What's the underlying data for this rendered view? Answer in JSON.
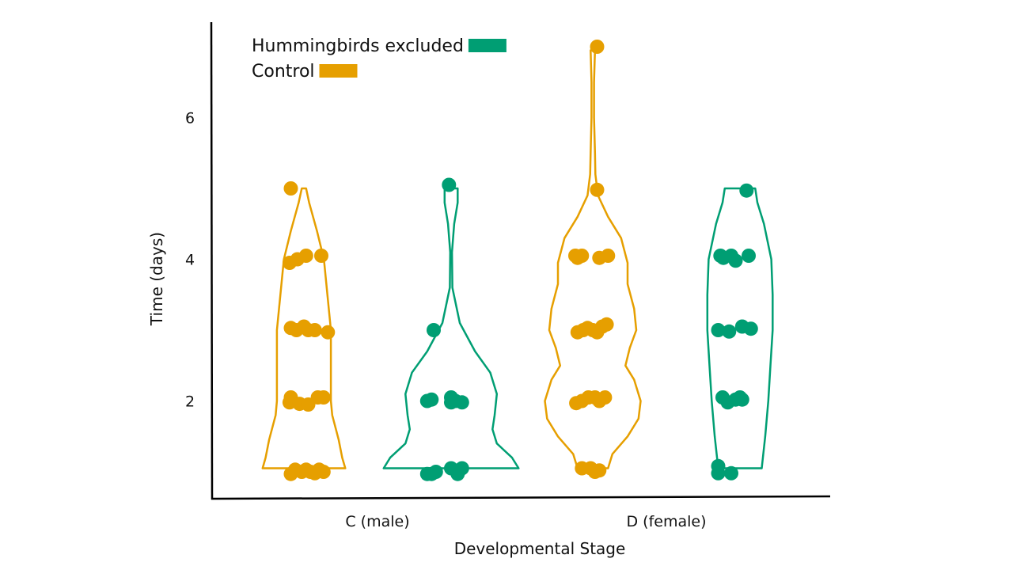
{
  "chart_data": {
    "type": "violin",
    "title": "",
    "xlabel": "Developmental Stage",
    "ylabel": "Time (days)",
    "ylim": [
      0.6,
      7.3
    ],
    "yticks": [
      2,
      4,
      6
    ],
    "grid": false,
    "legend_position": "top-left",
    "categories": [
      "C (male)",
      "D (female)"
    ],
    "series": [
      {
        "name": "Control",
        "color": "#E69F00",
        "groups": [
          {
            "category": "C (male)",
            "points": [
              {
                "x_jitter": -0.3,
                "y": 5.0
              },
              {
                "x_jitter": -0.33,
                "y": 3.95
              },
              {
                "x_jitter": -0.15,
                "y": 4.0
              },
              {
                "x_jitter": 0.05,
                "y": 4.05
              },
              {
                "x_jitter": 0.4,
                "y": 4.05
              },
              {
                "x_jitter": -0.3,
                "y": 3.03
              },
              {
                "x_jitter": -0.17,
                "y": 3.0
              },
              {
                "x_jitter": 0.0,
                "y": 3.05
              },
              {
                "x_jitter": 0.1,
                "y": 3.0
              },
              {
                "x_jitter": 0.25,
                "y": 3.0
              },
              {
                "x_jitter": 0.55,
                "y": 2.97
              },
              {
                "x_jitter": -0.3,
                "y": 2.05
              },
              {
                "x_jitter": -0.33,
                "y": 1.98
              },
              {
                "x_jitter": -0.1,
                "y": 1.96
              },
              {
                "x_jitter": 0.1,
                "y": 1.95
              },
              {
                "x_jitter": 0.32,
                "y": 2.05
              },
              {
                "x_jitter": 0.45,
                "y": 2.05
              },
              {
                "x_jitter": -0.3,
                "y": 0.97
              },
              {
                "x_jitter": -0.2,
                "y": 1.03
              },
              {
                "x_jitter": -0.05,
                "y": 1.0
              },
              {
                "x_jitter": 0.05,
                "y": 1.03
              },
              {
                "x_jitter": 0.15,
                "y": 1.0
              },
              {
                "x_jitter": 0.25,
                "y": 0.98
              },
              {
                "x_jitter": 0.35,
                "y": 1.03
              },
              {
                "x_jitter": 0.45,
                "y": 1.0
              }
            ],
            "violin": {
              "ys": [
                1.05,
                1.2,
                1.45,
                1.8,
                2.0,
                2.35,
                3.0,
                4.0,
                4.4,
                4.8,
                5.0
              ],
              "half_widths": [
                0.95,
                0.88,
                0.8,
                0.65,
                0.62,
                0.62,
                0.62,
                0.46,
                0.3,
                0.12,
                0.05
              ]
            }
          },
          {
            "category": "D (female)",
            "points": [
              {
                "x_jitter": 0.1,
                "y": 7.0
              },
              {
                "x_jitter": 0.1,
                "y": 4.98
              },
              {
                "x_jitter": -0.4,
                "y": 4.05
              },
              {
                "x_jitter": -0.35,
                "y": 4.02
              },
              {
                "x_jitter": -0.25,
                "y": 4.05
              },
              {
                "x_jitter": 0.15,
                "y": 4.02
              },
              {
                "x_jitter": 0.35,
                "y": 4.05
              },
              {
                "x_jitter": -0.35,
                "y": 2.97
              },
              {
                "x_jitter": -0.22,
                "y": 3.0
              },
              {
                "x_jitter": -0.12,
                "y": 3.03
              },
              {
                "x_jitter": 0.0,
                "y": 3.0
              },
              {
                "x_jitter": 0.1,
                "y": 2.97
              },
              {
                "x_jitter": 0.22,
                "y": 3.05
              },
              {
                "x_jitter": 0.32,
                "y": 3.08
              },
              {
                "x_jitter": -0.38,
                "y": 1.97
              },
              {
                "x_jitter": -0.25,
                "y": 2.0
              },
              {
                "x_jitter": -0.1,
                "y": 2.05
              },
              {
                "x_jitter": 0.05,
                "y": 2.05
              },
              {
                "x_jitter": 0.15,
                "y": 2.0
              },
              {
                "x_jitter": 0.28,
                "y": 2.05
              },
              {
                "x_jitter": -0.25,
                "y": 1.05
              },
              {
                "x_jitter": -0.05,
                "y": 1.05
              },
              {
                "x_jitter": 0.05,
                "y": 1.0
              },
              {
                "x_jitter": 0.15,
                "y": 1.02
              }
            ],
            "violin": {
              "ys": [
                1.05,
                1.25,
                1.5,
                1.75,
                2.0,
                2.3,
                2.5,
                2.75,
                3.0,
                3.3,
                3.65,
                3.95,
                4.3,
                4.6,
                4.9,
                5.2,
                5.5,
                6.0,
                6.5,
                6.95
              ],
              "half_widths": [
                0.35,
                0.45,
                0.8,
                1.05,
                1.1,
                0.95,
                0.75,
                0.85,
                1.0,
                0.95,
                0.8,
                0.8,
                0.65,
                0.35,
                0.12,
                0.06,
                0.05,
                0.03,
                0.03,
                0.05
              ]
            }
          }
        ]
      },
      {
        "name": "Hummingbirds excluded",
        "color": "#009E73",
        "groups": [
          {
            "category": "C (male)",
            "points": [
              {
                "x_jitter": -0.05,
                "y": 5.05
              },
              {
                "x_jitter": -0.4,
                "y": 3.0
              },
              {
                "x_jitter": -0.55,
                "y": 2.0
              },
              {
                "x_jitter": -0.45,
                "y": 2.02
              },
              {
                "x_jitter": 0.0,
                "y": 2.05
              },
              {
                "x_jitter": 0.0,
                "y": 1.98
              },
              {
                "x_jitter": 0.1,
                "y": 2.0
              },
              {
                "x_jitter": 0.25,
                "y": 1.98
              },
              {
                "x_jitter": -0.55,
                "y": 0.97
              },
              {
                "x_jitter": -0.45,
                "y": 0.97
              },
              {
                "x_jitter": -0.35,
                "y": 1.0
              },
              {
                "x_jitter": 0.0,
                "y": 1.05
              },
              {
                "x_jitter": 0.15,
                "y": 0.97
              },
              {
                "x_jitter": 0.25,
                "y": 1.05
              }
            ],
            "violin": {
              "ys": [
                1.05,
                1.2,
                1.4,
                1.6,
                1.8,
                2.1,
                2.4,
                2.7,
                3.1,
                3.6,
                4.1,
                4.5,
                4.8,
                5.0
              ],
              "half_widths": [
                1.55,
                1.4,
                1.05,
                0.95,
                1.0,
                1.05,
                0.9,
                0.55,
                0.2,
                0.03,
                0.02,
                0.07,
                0.15,
                0.15
              ]
            }
          },
          {
            "category": "D (female)",
            "points": [
              {
                "x_jitter": 0.15,
                "y": 4.97
              },
              {
                "x_jitter": -0.45,
                "y": 4.05
              },
              {
                "x_jitter": -0.38,
                "y": 4.02
              },
              {
                "x_jitter": -0.2,
                "y": 4.05
              },
              {
                "x_jitter": -0.1,
                "y": 3.98
              },
              {
                "x_jitter": 0.2,
                "y": 4.05
              },
              {
                "x_jitter": -0.5,
                "y": 3.0
              },
              {
                "x_jitter": -0.25,
                "y": 2.98
              },
              {
                "x_jitter": 0.05,
                "y": 3.05
              },
              {
                "x_jitter": 0.25,
                "y": 3.02
              },
              {
                "x_jitter": -0.4,
                "y": 2.05
              },
              {
                "x_jitter": -0.28,
                "y": 1.98
              },
              {
                "x_jitter": -0.1,
                "y": 2.02
              },
              {
                "x_jitter": 0.0,
                "y": 2.05
              },
              {
                "x_jitter": 0.05,
                "y": 2.02
              },
              {
                "x_jitter": -0.5,
                "y": 1.08
              },
              {
                "x_jitter": -0.5,
                "y": 0.98
              },
              {
                "x_jitter": -0.2,
                "y": 0.98
              }
            ],
            "violin": {
              "ys": [
                1.05,
                1.5,
                2.0,
                2.5,
                3.0,
                3.5,
                4.0,
                4.5,
                4.8,
                5.0
              ],
              "half_widths": [
                0.5,
                0.58,
                0.65,
                0.7,
                0.75,
                0.75,
                0.72,
                0.55,
                0.4,
                0.35
              ]
            }
          }
        ]
      }
    ]
  }
}
